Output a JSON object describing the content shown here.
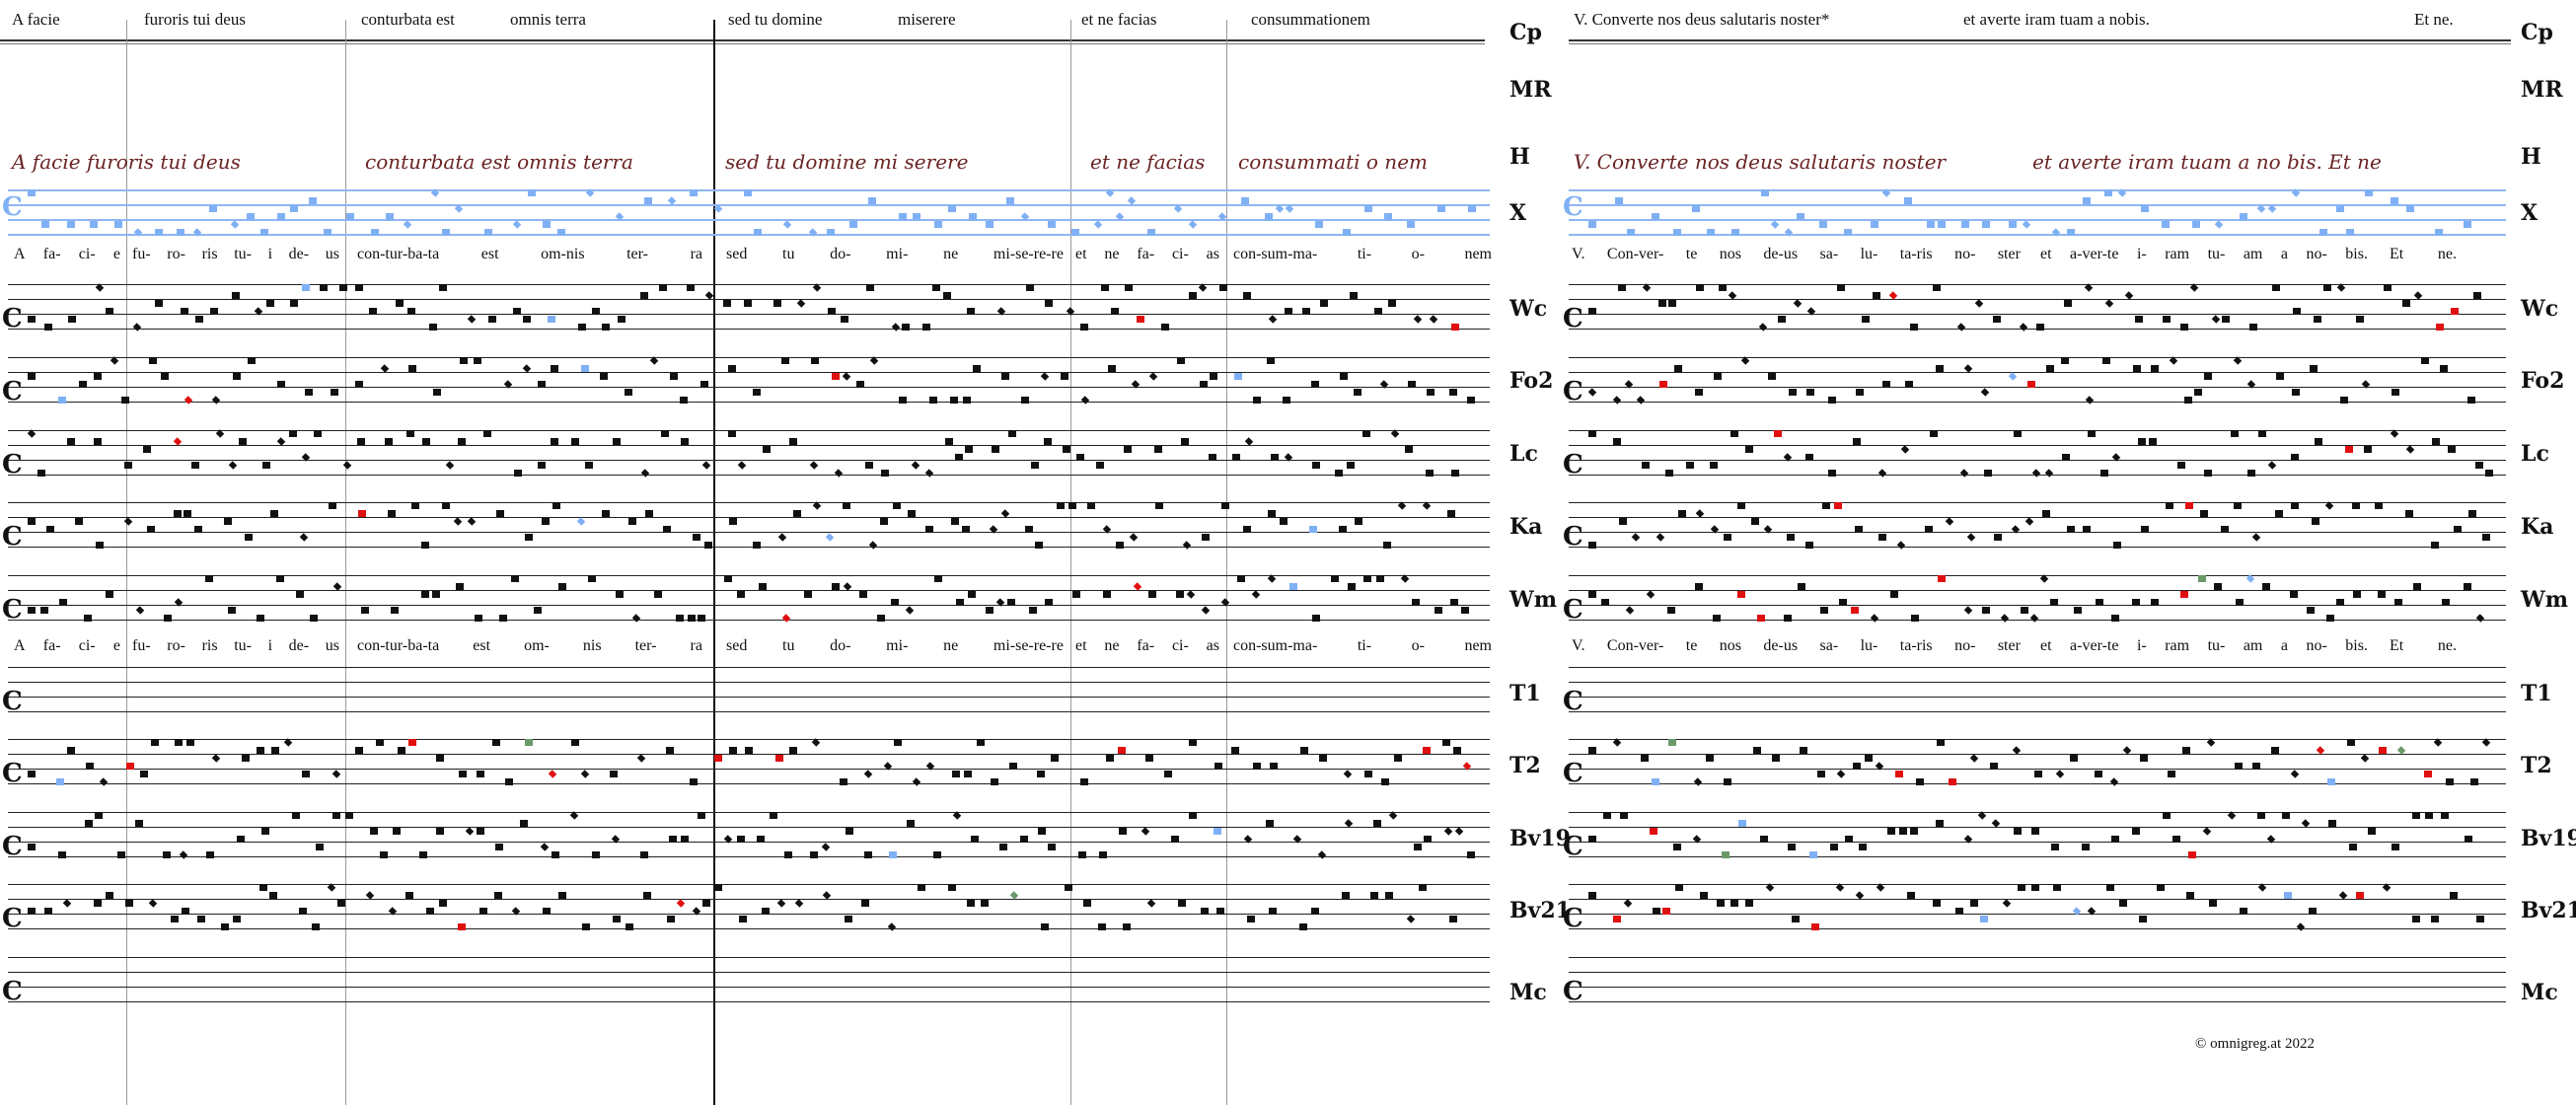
{
  "header": {
    "left_segments": [
      "A facie",
      "furoris tui deus",
      "conturbata est",
      "omnis terra",
      "sed tu domine",
      "miserere",
      "et ne facias",
      "consummationem"
    ],
    "right_segments": [
      "V. Converte nos deus salutaris noster*",
      "et averte iram tuam a nobis.",
      "Et ne."
    ]
  },
  "manuscripts": [
    "Cp",
    "MR",
    "H",
    "X",
    "Wc",
    "Fo2",
    "Lc",
    "Ka",
    "Wm",
    "T1",
    "T2",
    "Bv19",
    "Bv21",
    "Mc"
  ],
  "manuscript_text": {
    "left": [
      "A facie furoris tui deus",
      "conturbata est omnis terra",
      "sed tu domine mi serere",
      "et ne facias",
      "consummati o nem"
    ],
    "right": [
      "V. Converte nos deus salutaris noster",
      "et averte iram tuam a no bis. Et ne"
    ]
  },
  "lyrics_row1": {
    "left": [
      "A fa- ci- e",
      "fu- ro- ris tu- i de- us",
      "con-tur-ba-ta est om-nis ter- ra",
      "sed tu do- mi- ne mi-se-re-re",
      "et ne fa- ci- as",
      "con-sum-ma- ti- o- nem"
    ],
    "right": [
      "V. Con-ver- te nos de-us sa- lu- ta-ris no- ster",
      "et a-ver-te i- ram tu- am a no- bis.",
      "Et ne."
    ]
  },
  "lyrics_row2": {
    "left": [
      "A fa- ci- e",
      "fu- ro- ris tu- i de- us",
      "con-tur-ba-ta est om- nis ter- ra",
      "sed tu do- mi- ne mi-se-re-re",
      "et ne fa- ci- as",
      "con-sum-ma- ti- o- nem"
    ],
    "right": [
      "V. Con-ver- te nos de-us sa- lu- ta-ris no- ster",
      "et a-ver-te i- ram tu- am a no- bis.",
      "Et ne."
    ]
  },
  "footer": "©  omnigreg.at   2022",
  "colors": {
    "red": "#e01010",
    "blue": "#7fb0f5",
    "green": "#6a9a6a",
    "manuscript": "#6b2424"
  }
}
